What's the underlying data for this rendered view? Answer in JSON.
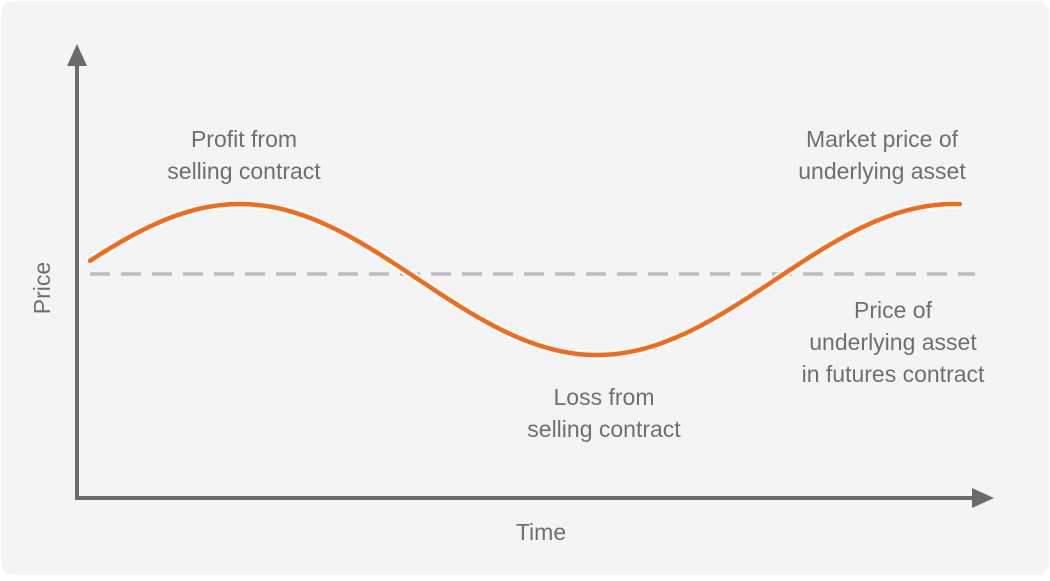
{
  "axes": {
    "y_label": "Price",
    "x_label": "Time"
  },
  "annotations": {
    "profit": [
      "Profit from",
      "selling contract"
    ],
    "market_price": [
      "Market price of",
      "underlying asset"
    ],
    "futures_price": [
      "Price of",
      "underlying asset",
      "in futures contract"
    ],
    "loss": [
      "Loss from",
      "selling contract"
    ]
  }
}
